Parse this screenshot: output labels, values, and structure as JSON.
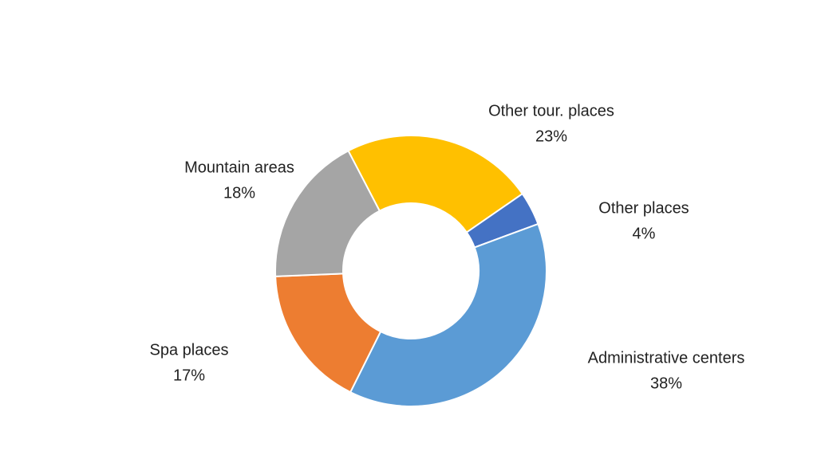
{
  "chart_data": {
    "type": "donut",
    "categories": [
      "Other tour. places",
      "Other places",
      "Administrative centers",
      "Spa places",
      "Mountain areas"
    ],
    "values": [
      23,
      4,
      38,
      17,
      18
    ],
    "value_labels": [
      "23%",
      "4%",
      "38%",
      "17%",
      "18%"
    ],
    "colors": [
      "#FFC000",
      "#4472C4",
      "#5B9BD5",
      "#ED7D31",
      "#A5A5A5"
    ]
  }
}
